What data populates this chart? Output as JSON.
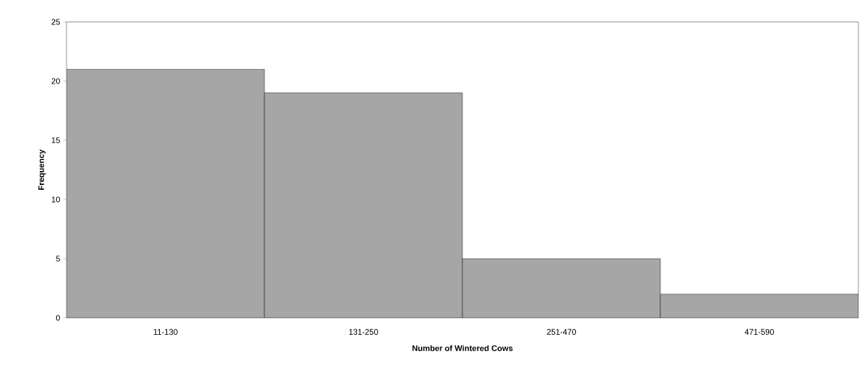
{
  "chart_data": {
    "type": "bar",
    "xlabel": "Number of Wintered Cows",
    "ylabel": "Frequency",
    "categories": [
      "11-130",
      "131-250",
      "251-470",
      "471-590"
    ],
    "values": [
      21,
      19,
      5,
      2
    ],
    "color": "#a6a6a6",
    "ylim": [
      0,
      25
    ],
    "yticks": [
      0,
      5,
      10,
      15,
      20,
      25
    ],
    "grid": false
  }
}
